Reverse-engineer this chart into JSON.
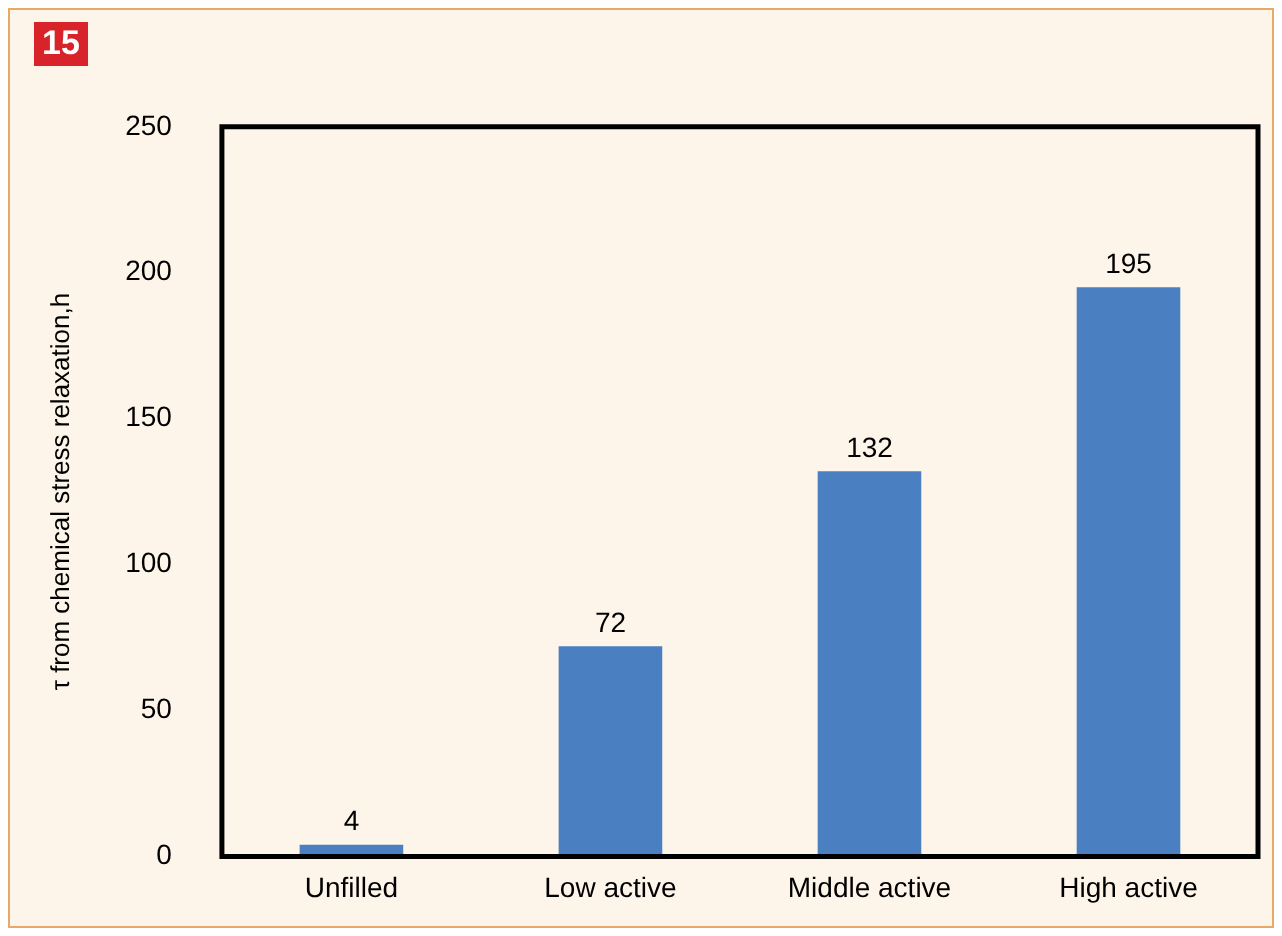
{
  "chart_data": {
    "type": "bar",
    "annotations": [
      "15"
    ],
    "ylabel": "τ from chemical stress relaxation,h",
    "categories": [
      "Unfilled",
      "Low active",
      "Middle active",
      "High active"
    ],
    "values": [
      4,
      72,
      132,
      195
    ],
    "color": "#4a7fc1",
    "ylim": [
      0,
      250
    ],
    "yticks": [
      0,
      50,
      100,
      150,
      200,
      250
    ],
    "grid": false,
    "data_labels": true,
    "legend": false
  }
}
